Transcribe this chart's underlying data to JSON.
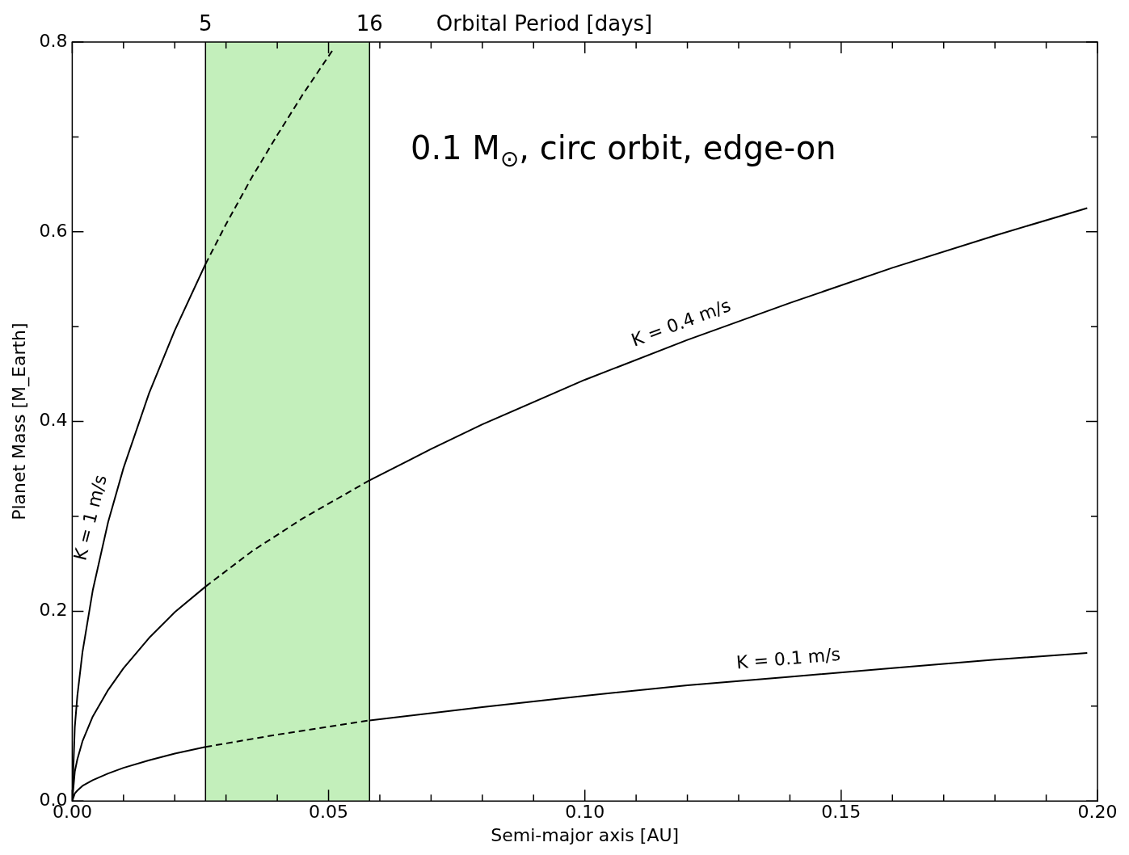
{
  "chart_data": {
    "type": "line",
    "xlabel": "Semi-major axis [AU]",
    "ylabel": "Planet Mass [M_Earth]",
    "annotations": [
      "Orbital Period [days]",
      "0.1 M$_{⊙}$, circ orbit, edge-on",
      {
        "text": "5",
        "x": 0.026,
        "y": 0.8
      },
      {
        "text": "16",
        "x": 0.058,
        "y": 0.8
      }
    ],
    "xlim": [
      0,
      0.2
    ],
    "ylim": [
      0,
      0.8
    ],
    "xticks": [
      {
        "value": 0,
        "label": "0.00"
      },
      {
        "value": 0.01,
        "label": null
      },
      {
        "value": 0.02,
        "label": null
      },
      {
        "value": 0.03,
        "label": null
      },
      {
        "value": 0.04,
        "label": null
      },
      {
        "value": 0.05,
        "label": "0.05"
      },
      {
        "value": 0.06,
        "label": null
      },
      {
        "value": 0.07,
        "label": null
      },
      {
        "value": 0.08,
        "label": null
      },
      {
        "value": 0.09,
        "label": null
      },
      {
        "value": 0.1,
        "label": "0.10"
      },
      {
        "value": 0.11,
        "label": null
      },
      {
        "value": 0.12,
        "label": null
      },
      {
        "value": 0.13,
        "label": null
      },
      {
        "value": 0.14,
        "label": null
      },
      {
        "value": 0.15,
        "label": "0.15"
      },
      {
        "value": 0.16,
        "label": null
      },
      {
        "value": 0.17,
        "label": null
      },
      {
        "value": 0.18,
        "label": null
      },
      {
        "value": 0.19,
        "label": null
      },
      {
        "value": 0.2,
        "label": "0.20"
      }
    ],
    "ref_lines": [
      {
        "axis": "x",
        "value": 0.026,
        "color": "#000000"
      },
      {
        "axis": "x",
        "value": 0.058,
        "color": "#000000"
      }
    ],
    "yticks": [
      {
        "value": 0,
        "label": "0.0"
      },
      {
        "value": 0.1,
        "label": null
      },
      {
        "value": 0.2,
        "label": "0.2"
      },
      {
        "value": 0.3,
        "label": null
      },
      {
        "value": 0.4,
        "label": "0.4"
      },
      {
        "value": 0.5,
        "label": null
      },
      {
        "value": 0.6,
        "label": "0.6"
      },
      {
        "value": 0.7,
        "label": null
      },
      {
        "value": 0.8,
        "label": "0.8"
      }
    ],
    "grid": false,
    "legend": false,
    "marker": "none",
    "bands": [
      {
        "axis": "x",
        "from": 0.026,
        "to": 0.058,
        "color": "#c3efbb"
      }
    ],
    "series": [
      {
        "name": "K = 1 m/s",
        "color": "#000000",
        "line_style": "solid",
        "x": [
          0,
          0.0005,
          0.001,
          0.002,
          0.004,
          0.007,
          0.01,
          0.015,
          0.02,
          0.026
        ],
        "values": [
          0,
          0.078,
          0.111,
          0.157,
          0.222,
          0.294,
          0.351,
          0.43,
          0.496,
          0.566
        ]
      },
      {
        "color": "#000000",
        "line_style": "dashed",
        "x": [
          0.026,
          0.03,
          0.035,
          0.04,
          0.045,
          0.051
        ],
        "values": [
          0.566,
          0.608,
          0.657,
          0.702,
          0.745,
          0.793
        ]
      },
      {
        "name": "K = 0.4 m/s",
        "color": "#000000",
        "line_style": "solid",
        "x": [
          0.058,
          0.07,
          0.08,
          0.1,
          0.12,
          0.14,
          0.16,
          0.18,
          0.198
        ],
        "values": [
          0.338,
          0.371,
          0.397,
          0.444,
          0.486,
          0.525,
          0.562,
          0.596,
          0.625
        ]
      },
      {
        "color": "#000000",
        "line_style": "solid",
        "x": [
          0,
          0.0005,
          0.001,
          0.002,
          0.004,
          0.007,
          0.01,
          0.015,
          0.02,
          0.026
        ],
        "values": [
          0,
          0.031,
          0.044,
          0.063,
          0.089,
          0.117,
          0.14,
          0.172,
          0.199,
          0.226
        ]
      },
      {
        "color": "#000000",
        "line_style": "dashed",
        "x": [
          0.026,
          0.035,
          0.045,
          0.058
        ],
        "values": [
          0.226,
          0.263,
          0.298,
          0.338
        ]
      },
      {
        "name": "K = 0.1 m/s",
        "color": "#000000",
        "line_style": "solid",
        "x": [
          0.058,
          0.08,
          0.1,
          0.12,
          0.14,
          0.16,
          0.18,
          0.198
        ],
        "values": [
          0.085,
          0.099,
          0.111,
          0.122,
          0.131,
          0.14,
          0.149,
          0.156
        ]
      },
      {
        "color": "#000000",
        "line_style": "solid",
        "x": [
          0,
          0.0005,
          0.001,
          0.002,
          0.004,
          0.007,
          0.01,
          0.015,
          0.02,
          0.026
        ],
        "values": [
          0,
          0.008,
          0.011,
          0.016,
          0.022,
          0.029,
          0.035,
          0.043,
          0.05,
          0.057
        ]
      },
      {
        "color": "#000000",
        "line_style": "dashed",
        "x": [
          0.026,
          0.04,
          0.058
        ],
        "values": [
          0.057,
          0.07,
          0.085
        ]
      }
    ]
  }
}
